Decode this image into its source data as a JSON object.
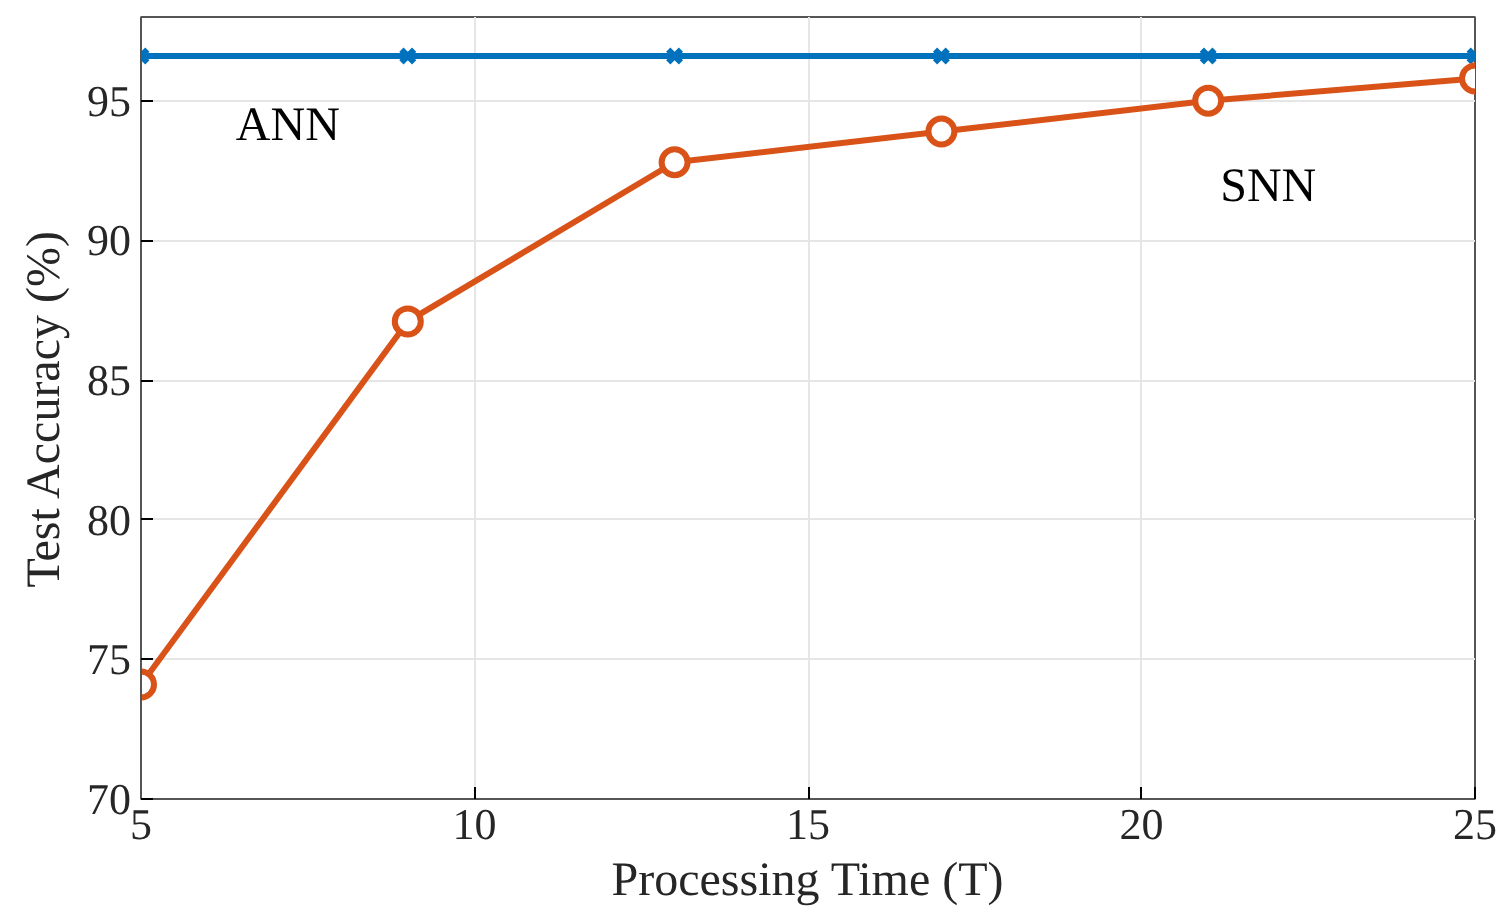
{
  "chart_data": {
    "type": "line",
    "xlabel": "Processing Time (T)",
    "ylabel": "Test Accuracy (%)",
    "x": [
      5,
      9,
      13,
      17,
      21,
      25
    ],
    "series": [
      {
        "name": "ANN",
        "color": "#0072bd",
        "marker": "cross",
        "values": [
          96.6,
          96.6,
          96.6,
          96.6,
          96.6,
          96.6
        ]
      },
      {
        "name": "SNN",
        "color": "#d95319",
        "marker": "circle",
        "values": [
          74.1,
          87.1,
          92.8,
          93.9,
          95.0,
          95.8
        ]
      }
    ],
    "xlim": [
      5,
      25
    ],
    "xticks": [
      5,
      10,
      15,
      20,
      25
    ],
    "ylim": [
      70,
      98
    ],
    "yticks": [
      70,
      75,
      80,
      85,
      90,
      95
    ],
    "grid": true,
    "line_style": "solid"
  }
}
